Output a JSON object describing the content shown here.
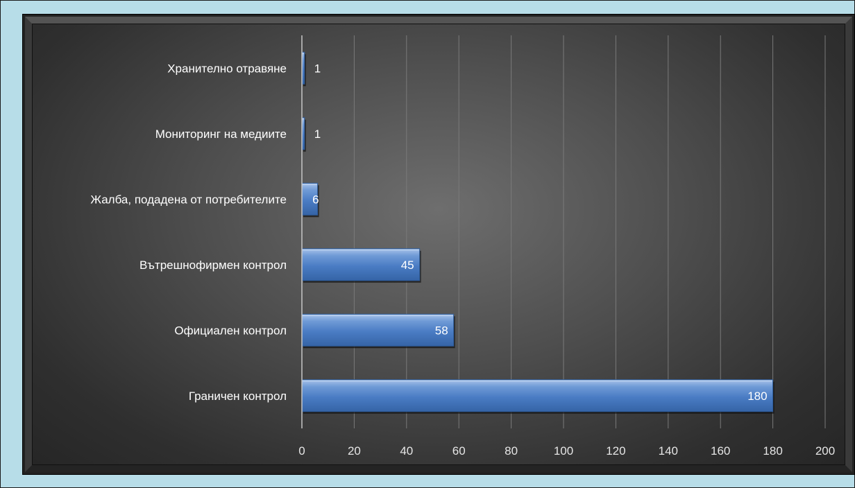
{
  "chart_data": {
    "type": "bar",
    "orientation": "horizontal",
    "categories": [
      "Хранително отравяне",
      "Мониторинг на медиите",
      "Жалба, подадена от потребителите",
      "Вътрешнофирмен контрол",
      "Официален контрол",
      "Граничен контрол"
    ],
    "values": [
      1,
      1,
      6,
      45,
      58,
      180
    ],
    "value_labels": [
      "1",
      "1",
      "6",
      "45",
      "58",
      "180"
    ],
    "xlim": [
      0,
      200
    ],
    "xticks": [
      0,
      20,
      40,
      60,
      80,
      100,
      120,
      140,
      160,
      180,
      200
    ],
    "xtick_labels": [
      "0",
      "20",
      "40",
      "60",
      "80",
      "100",
      "120",
      "140",
      "160",
      "180",
      "200"
    ],
    "grid": "vertical",
    "legend": "none",
    "bar_color": "#4f81bd",
    "background": "#b7dde8"
  }
}
